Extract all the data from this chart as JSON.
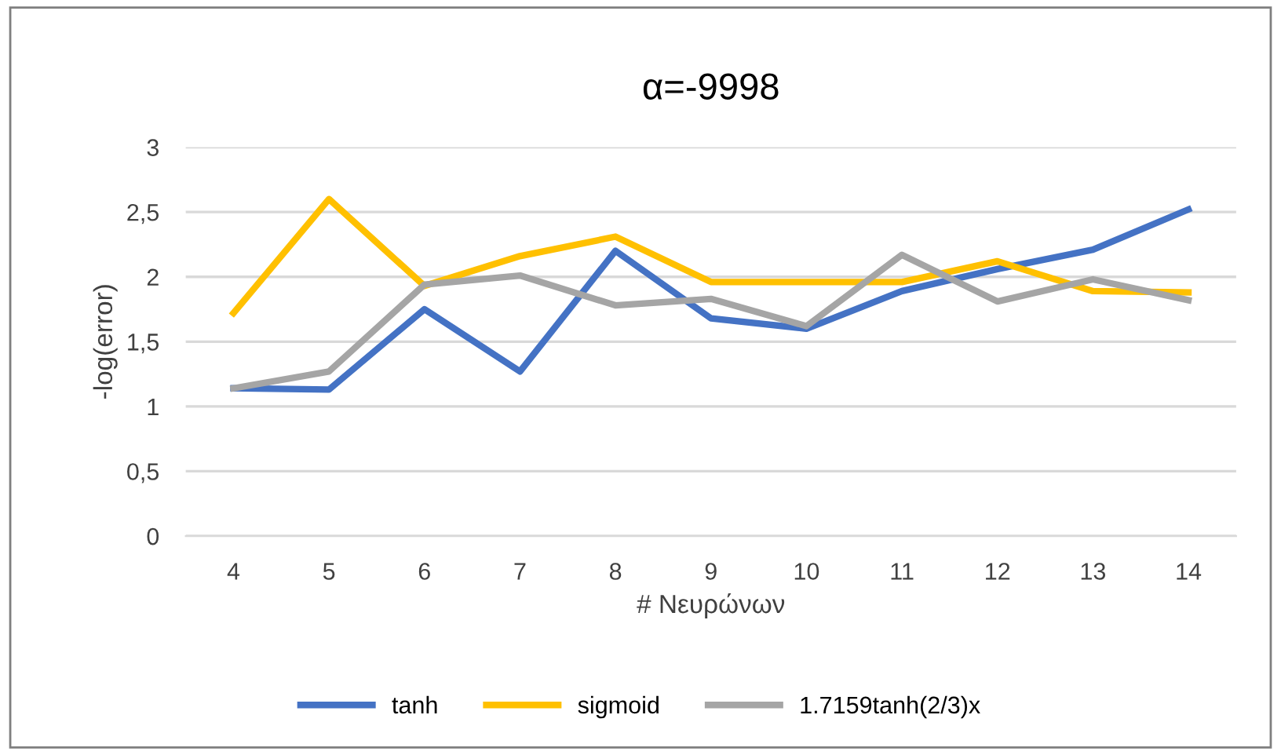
{
  "chart_data": {
    "type": "line",
    "title": "α=-9998",
    "xlabel": "# Νευρώνων",
    "ylabel": "-log(error)",
    "categories": [
      "4",
      "5",
      "6",
      "7",
      "8",
      "9",
      "10",
      "11",
      "12",
      "13",
      "14"
    ],
    "series": [
      {
        "name": "tanh",
        "color": "#4472c4",
        "values": [
          1.14,
          1.13,
          1.75,
          1.27,
          2.2,
          1.68,
          1.6,
          1.89,
          2.06,
          2.21,
          2.52
        ]
      },
      {
        "name": "sigmoid",
        "color": "#ffc000",
        "values": [
          1.72,
          2.6,
          1.93,
          2.16,
          2.31,
          1.96,
          1.96,
          1.96,
          2.12,
          1.89,
          1.88
        ]
      },
      {
        "name": "1.7159tanh(2/3)x",
        "color": "#a5a5a5",
        "values": [
          1.14,
          1.27,
          1.94,
          2.01,
          1.78,
          1.83,
          1.62,
          2.17,
          1.81,
          1.98,
          1.82
        ]
      }
    ],
    "ylim": [
      0,
      3
    ],
    "yticks": [
      0,
      {
        "value": 0.5,
        "label": "0,5"
      },
      1,
      {
        "value": 1.5,
        "label": "1,5"
      },
      2,
      {
        "value": 2.5,
        "label": "2,5"
      },
      3
    ],
    "grid": "y",
    "legend": "bottom",
    "marker": "none",
    "line_style": "solid"
  }
}
